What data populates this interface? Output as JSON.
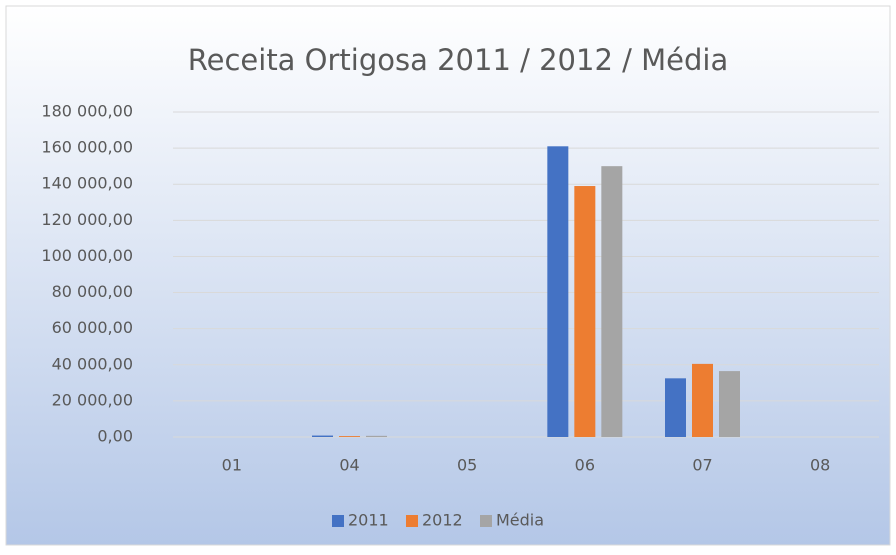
{
  "chart_data": {
    "type": "bar",
    "title": "Receita Ortigosa 2011 / 2012 / Média",
    "categories": [
      "01",
      "04",
      "05",
      "06",
      "07",
      "08"
    ],
    "series": [
      {
        "name": "2011",
        "color": "#4472c4",
        "values": [
          0,
          800,
          0,
          161000,
          32500,
          0
        ]
      },
      {
        "name": "2012",
        "color": "#ed7d31",
        "values": [
          0,
          500,
          0,
          139000,
          40500,
          0
        ]
      },
      {
        "name": "Média",
        "color": "#a5a5a5",
        "values": [
          0,
          650,
          0,
          150000,
          36500,
          0
        ]
      }
    ],
    "ylim": [
      0,
      180000
    ],
    "yticks": [
      {
        "value": 0,
        "label": "0,00"
      },
      {
        "value": 20000,
        "label": "20 000,00"
      },
      {
        "value": 40000,
        "label": "40 000,00"
      },
      {
        "value": 60000,
        "label": "60 000,00"
      },
      {
        "value": 80000,
        "label": "80 000,00"
      },
      {
        "value": 100000,
        "label": "100 000,00"
      },
      {
        "value": 120000,
        "label": "120 000,00"
      },
      {
        "value": 140000,
        "label": "140 000,00"
      },
      {
        "value": 160000,
        "label": "160 000,00"
      },
      {
        "value": 180000,
        "label": "180 000,00"
      }
    ],
    "grid": true,
    "legend": "bottom"
  }
}
